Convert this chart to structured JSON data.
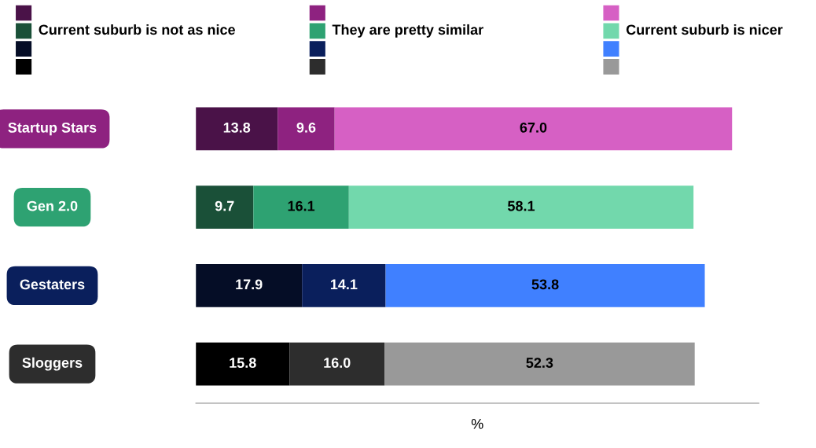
{
  "chart_data": {
    "type": "bar",
    "orientation": "horizontal",
    "stacked": true,
    "xlabel": "%",
    "categories": [
      "Startup Stars",
      "Gen 2.0",
      "Gestaters",
      "Sloggers"
    ],
    "series": [
      {
        "name": "Current suburb is not as nice",
        "colors": [
          "#4a1248",
          "#1a5038",
          "#050d26",
          "#000000"
        ],
        "values": [
          13.8,
          9.7,
          17.9,
          15.8
        ],
        "value_labels": [
          "13.8",
          "9.7",
          "17.9",
          "15.8"
        ]
      },
      {
        "name": "They are pretty similar",
        "colors": [
          "#8e2280",
          "#2ea272",
          "#0a1f5c",
          "#2d2d2d"
        ],
        "values": [
          9.6,
          16.1,
          14.1,
          16.0
        ],
        "value_labels": [
          "9.6",
          "16.1",
          "14.1",
          "16.0"
        ]
      },
      {
        "name": "Current suburb is nicer",
        "colors": [
          "#d660c4",
          "#72d8ac",
          "#4080ff",
          "#999999"
        ],
        "values": [
          67.0,
          58.1,
          53.8,
          52.3
        ],
        "value_labels": [
          "67.0",
          "58.1",
          "53.8",
          "52.3"
        ]
      }
    ],
    "legend": "top",
    "grid": false
  }
}
